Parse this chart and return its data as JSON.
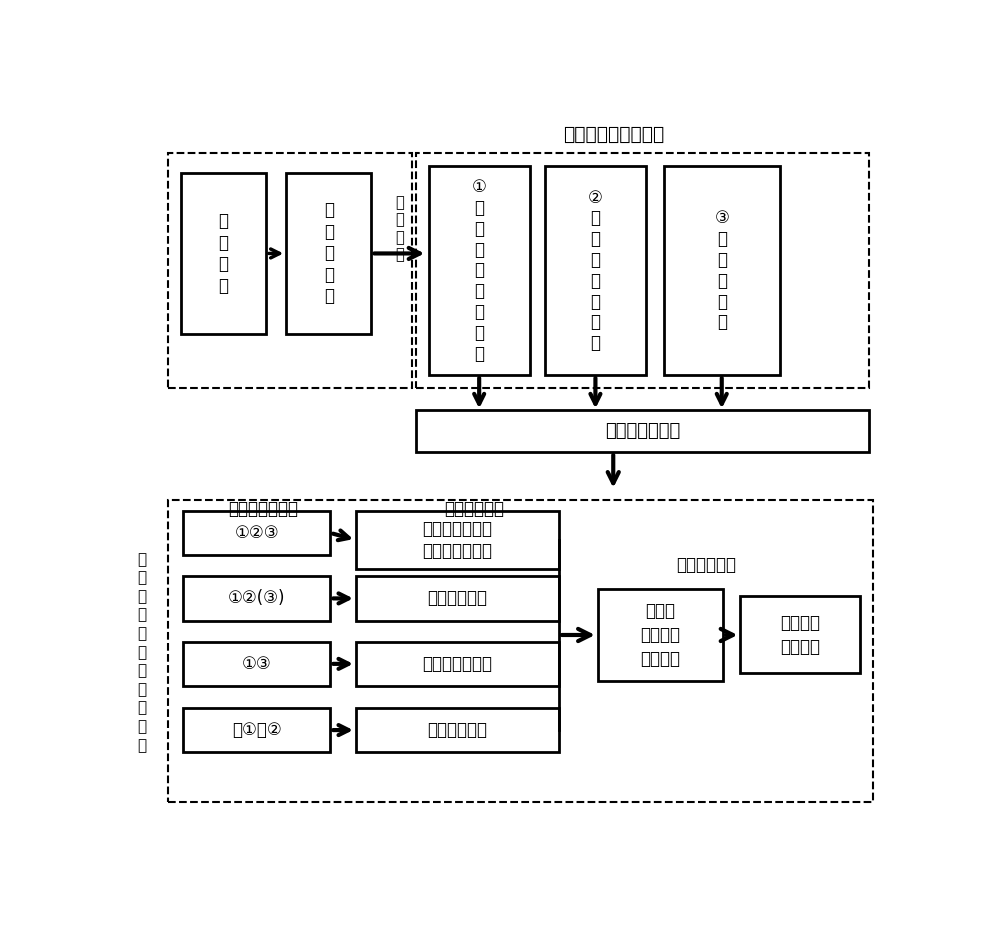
{
  "bg_color": "#ffffff",
  "title_top": "多维度信号采集模块",
  "title_left_vertical": "多\n维\n度\n信\n号\n组\n合\n分\n析\n模\n块",
  "sensor1_label": "①\n特\n高\n频\n信\n号\n传\n感\n器",
  "sensor2_label": "②\n高\n频\n电\n流\n传\n感\n器",
  "sensor3_label": "③\n光\n纤\n传\n感\n器",
  "defect_label": "绝\n缘\n缺\n陷",
  "transformer_label": "变\n压\n器\n套\n管",
  "signal_label": "局\n放\n信\n号",
  "transmission_label": "多维度信号传输",
  "combo_title": "多维度信号组合",
  "position_title": "确定放电位置",
  "analysis_title": "分析放电类型",
  "combo1": "①②③",
  "combo2": "①②(③)",
  "combo3": "①③",
  "combo4": "（①）②",
  "pos1": "均压罩、末屏、\n下瓷套、均压罩",
  "pos2": "内部绝缘油中",
  "pos3": "套管顶部高压端",
  "pos4": "电容芯子内部",
  "discharge_label": "放电量\n放电幅值\n放电次数",
  "result_label": "绝缘程度\n放电类型"
}
